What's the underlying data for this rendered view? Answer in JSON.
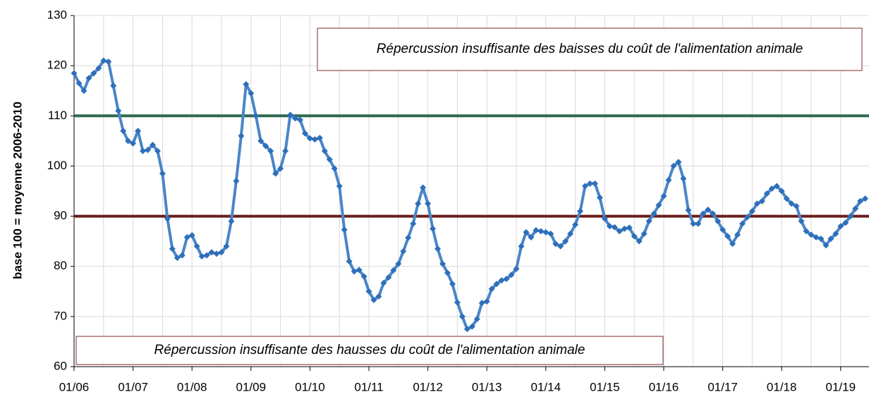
{
  "chart_data": {
    "type": "line",
    "y_label": "base 100 = moyenne 2006-2010",
    "categories": [
      "01/06",
      null,
      null,
      null,
      null,
      null,
      null,
      null,
      null,
      null,
      null,
      null,
      "01/07",
      null,
      null,
      null,
      null,
      null,
      null,
      null,
      null,
      null,
      null,
      null,
      "01/08",
      null,
      null,
      null,
      null,
      null,
      null,
      null,
      null,
      null,
      null,
      null,
      "01/09",
      null,
      null,
      null,
      null,
      null,
      null,
      null,
      null,
      null,
      null,
      null,
      "01/10",
      null,
      null,
      null,
      null,
      null,
      null,
      null,
      null,
      null,
      null,
      null,
      "01/11",
      null,
      null,
      null,
      null,
      null,
      null,
      null,
      null,
      null,
      null,
      null,
      "01/12",
      null,
      null,
      null,
      null,
      null,
      null,
      null,
      null,
      null,
      null,
      null,
      "01/13",
      null,
      null,
      null,
      null,
      null,
      null,
      null,
      null,
      null,
      null,
      null,
      "01/14",
      null,
      null,
      null,
      null,
      null,
      null,
      null,
      null,
      null,
      null,
      null,
      "01/15",
      null,
      null,
      null,
      null,
      null,
      null,
      null,
      null,
      null,
      null,
      null,
      "01/16",
      null,
      null,
      null,
      null,
      null,
      null,
      null,
      null,
      null,
      null,
      null,
      "01/17",
      null,
      null,
      null,
      null,
      null,
      null,
      null,
      null,
      null,
      null,
      null,
      "01/18",
      null,
      null,
      null,
      null,
      null,
      null,
      null,
      null,
      null,
      null,
      null,
      "01/19",
      null,
      null,
      null,
      null,
      null
    ],
    "series": [
      {
        "color": "#4a86c8",
        "marker_color": "#2e6fba",
        "values": [
          118.5,
          116.5,
          115,
          117.5,
          118.5,
          119.5,
          121,
          120.8,
          116,
          111,
          107,
          105,
          104.5,
          107,
          103,
          103.2,
          104.2,
          103,
          98.5,
          89.5,
          83.5,
          81.7,
          82.2,
          85.8,
          86.2,
          84,
          82,
          82.2,
          82.8,
          82.5,
          82.8,
          84,
          89,
          97,
          106,
          116.3,
          114.5,
          110,
          105,
          104,
          103,
          98.5,
          99.5,
          103,
          110.2,
          109.5,
          109.2,
          106.5,
          105.5,
          105.3,
          105.6,
          103,
          101.3,
          99.5,
          96,
          87.3,
          81,
          79,
          79.3,
          78,
          75,
          73.3,
          74,
          76.7,
          77.8,
          79.2,
          80.5,
          83,
          85.7,
          88.5,
          92.5,
          95.7,
          92.5,
          87.5,
          83.5,
          80.5,
          78.7,
          76.5,
          72.8,
          70,
          67.5,
          68,
          69.5,
          72.7,
          73,
          75.5,
          76.5,
          77.2,
          77.5,
          78.3,
          79.5,
          84,
          86.8,
          85.8,
          87.2,
          87,
          86.8,
          86.5,
          84.5,
          84,
          85,
          86.5,
          88.3,
          91,
          96,
          96.5,
          96.5,
          93.7,
          89.5,
          88,
          87.8,
          87,
          87.5,
          87.7,
          86,
          85,
          86.5,
          89,
          90.5,
          92.2,
          94,
          97.2,
          100,
          100.8,
          97.5,
          91.2,
          88.5,
          88.5,
          90.5,
          91.3,
          90.5,
          89,
          87.3,
          86,
          84.5,
          86.3,
          88.5,
          89.8,
          91,
          92.5,
          93,
          94.5,
          95.5,
          96,
          95,
          93.5,
          92.5,
          92,
          89,
          87,
          86.3,
          85.8,
          85.5,
          84.2,
          85.5,
          86.5,
          88,
          88.7,
          90,
          91.5,
          93,
          93.5
        ]
      }
    ],
    "hlines": [
      {
        "value": 110,
        "color": "#2d6a4f"
      },
      {
        "value": 90,
        "color": "#6b1d1d"
      }
    ],
    "annotations": [
      "Répercussion insuffisante des baisses du coût de l'alimentation animale",
      "Répercussion insuffisante des hausses du coût de l'alimentation animale"
    ],
    "ylim": [
      60,
      130
    ],
    "yticks": [
      60,
      70,
      80,
      90,
      100,
      110,
      120,
      130
    ],
    "grid": true
  }
}
